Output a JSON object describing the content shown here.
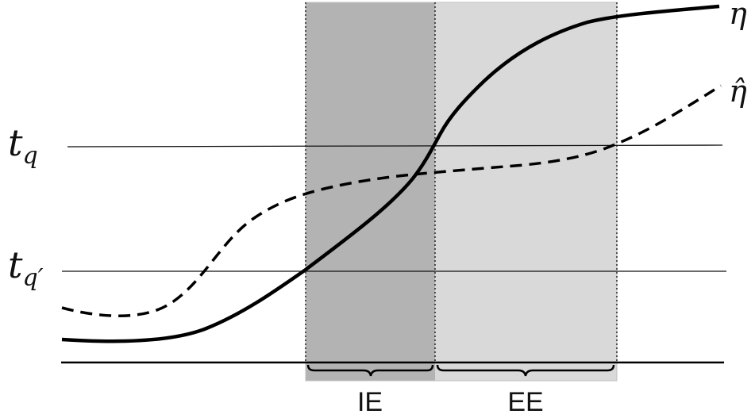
{
  "labels": {
    "eta": "η",
    "eta_hat": "η̂",
    "t_q_base": "t",
    "t_q_sub": "q",
    "t_qprime_base": "t",
    "t_qprime_sub": "q′",
    "ie": "IE",
    "ee": "EE"
  },
  "colors": {
    "ie_region": "#b3b3b3",
    "ee_region": "#d9d9d9",
    "curve": "#000000",
    "line": "#111111"
  }
}
